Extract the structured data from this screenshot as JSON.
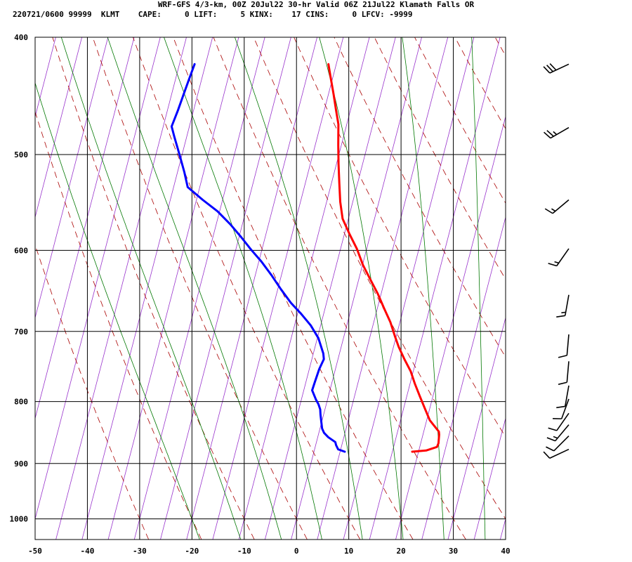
{
  "header": {
    "title": "WRF-GFS 4/3-km, 00Z 20Jul22 30-hr Valid 06Z 21Jul22 Klamath Falls OR",
    "stats": "220721/0600 99999  KLMT    CAPE:     0 LIFT:     5 KINX:    17 CINS:     0 LFCV: -9999"
  },
  "chart_data": {
    "type": "line",
    "title": "",
    "xlabel": "",
    "ylabel": "",
    "x_axis": {
      "range": [
        -50,
        40
      ],
      "ticks": [
        -50,
        -40,
        -30,
        -20,
        -10,
        0,
        10,
        20,
        30,
        40
      ]
    },
    "y_axis": {
      "scale": "log-pressure",
      "range": [
        1040,
        400
      ],
      "ticks": [
        400,
        500,
        600,
        700,
        800,
        900,
        1000
      ]
    },
    "grid": true,
    "colors": {
      "temperature": "#ff0000",
      "dewpoint": "#0000ff",
      "isotherms": "#9933cc",
      "dry_adiabats": "#aa0000",
      "moist_adiabats": "#007700",
      "grid": "#000000"
    },
    "series": [
      {
        "name": "",
        "role": "temperature",
        "values": [
          [
            18.8,
            880
          ],
          [
            21.4,
            878
          ],
          [
            23.3,
            872
          ],
          [
            23.4,
            866
          ],
          [
            23.1,
            852
          ],
          [
            22.9,
            847
          ],
          [
            20.6,
            829
          ],
          [
            19.1,
            811
          ],
          [
            17.5,
            792
          ],
          [
            15.9,
            773
          ],
          [
            14.5,
            755
          ],
          [
            12.7,
            738
          ],
          [
            11.0,
            721
          ],
          [
            9.7,
            706
          ],
          [
            8.2,
            688
          ],
          [
            6.3,
            670
          ],
          [
            4.4,
            652
          ],
          [
            2.2,
            634
          ],
          [
            0.1,
            617
          ],
          [
            -1.9,
            598
          ],
          [
            -4.1,
            581
          ],
          [
            -6.1,
            565
          ],
          [
            -7.4,
            547
          ],
          [
            -8.5,
            528
          ],
          [
            -9.6,
            509
          ],
          [
            -10.6,
            491
          ],
          [
            -11.6,
            472
          ],
          [
            -12.8,
            459
          ],
          [
            -14.0,
            446
          ],
          [
            -15.3,
            433
          ],
          [
            -16.5,
            421
          ]
        ]
      },
      {
        "name": "",
        "role": "dewpoint",
        "values": [
          [
            5.9,
            880
          ],
          [
            4.5,
            876
          ],
          [
            3.9,
            869
          ],
          [
            3.6,
            864
          ],
          [
            2.0,
            856
          ],
          [
            1.0,
            849
          ],
          [
            0.4,
            842
          ],
          [
            -0.1,
            831
          ],
          [
            -0.6,
            820
          ],
          [
            -0.9,
            812
          ],
          [
            -1.5,
            804
          ],
          [
            -2.2,
            797
          ],
          [
            -3.4,
            783
          ],
          [
            -3.3,
            771
          ],
          [
            -3.1,
            752
          ],
          [
            -2.7,
            738
          ],
          [
            -3.1,
            730
          ],
          [
            -4.8,
            709
          ],
          [
            -6.9,
            692
          ],
          [
            -9.3,
            677
          ],
          [
            -11.8,
            663
          ],
          [
            -14.4,
            646
          ],
          [
            -16.9,
            629
          ],
          [
            -19.5,
            613
          ],
          [
            -22.1,
            599
          ],
          [
            -24.6,
            585
          ],
          [
            -27.3,
            571
          ],
          [
            -30.4,
            557
          ],
          [
            -33.8,
            545
          ],
          [
            -37.3,
            532
          ],
          [
            -38.7,
            517
          ],
          [
            -40.5,
            500
          ],
          [
            -42.3,
            484
          ],
          [
            -43.4,
            474
          ],
          [
            -43.0,
            460
          ],
          [
            -42.7,
            446
          ],
          [
            -42.4,
            433
          ],
          [
            -42.1,
            421
          ]
        ]
      }
    ],
    "wind_barbs": [
      {
        "pressure": 421,
        "direction": 245,
        "speed": 30
      },
      {
        "pressure": 475,
        "direction": 240,
        "speed": 25
      },
      {
        "pressure": 545,
        "direction": 230,
        "speed": 15
      },
      {
        "pressure": 598,
        "direction": 215,
        "speed": 15
      },
      {
        "pressure": 653,
        "direction": 190,
        "speed": 15
      },
      {
        "pressure": 704,
        "direction": 185,
        "speed": 10
      },
      {
        "pressure": 741,
        "direction": 185,
        "speed": 10
      },
      {
        "pressure": 776,
        "direction": 190,
        "speed": 10
      },
      {
        "pressure": 796,
        "direction": 200,
        "speed": 10
      },
      {
        "pressure": 818,
        "direction": 215,
        "speed": 10
      },
      {
        "pressure": 836,
        "direction": 220,
        "speed": 15
      },
      {
        "pressure": 854,
        "direction": 225,
        "speed": 10
      },
      {
        "pressure": 876,
        "direction": 245,
        "speed": 10
      }
    ]
  }
}
